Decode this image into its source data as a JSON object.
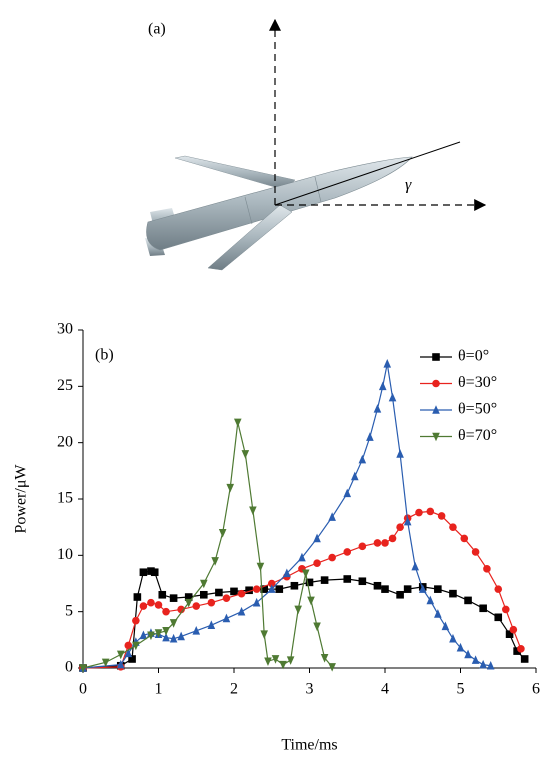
{
  "panel_a": {
    "label": "(a)",
    "angle_label": "γ"
  },
  "chart_data": {
    "type": "line",
    "panel_label": "(b)",
    "x_label": "Time/ms",
    "y_label": "Power/μW",
    "xlim": [
      0,
      6
    ],
    "xticks": [
      0,
      1,
      2,
      3,
      4,
      5,
      6
    ],
    "ylim": [
      0,
      30
    ],
    "yticks": [
      0,
      5,
      10,
      15,
      20,
      25,
      30
    ],
    "grid": false,
    "legend": "upper right",
    "series": [
      {
        "name": "θ=0°",
        "color": "#000000",
        "marker": "square",
        "x": [
          0,
          0.5,
          0.65,
          0.72,
          0.8,
          0.9,
          0.95,
          1.05,
          1.2,
          1.4,
          1.6,
          1.8,
          2.0,
          2.2,
          2.4,
          2.6,
          2.8,
          3.0,
          3.2,
          3.5,
          3.7,
          3.9,
          4.0,
          4.2,
          4.3,
          4.5,
          4.7,
          4.9,
          5.1,
          5.3,
          5.5,
          5.65,
          5.75,
          5.85
        ],
        "values": [
          0,
          0.2,
          0.8,
          6.3,
          8.5,
          8.6,
          8.5,
          6.5,
          6.2,
          6.3,
          6.5,
          6.7,
          6.8,
          6.9,
          7.0,
          7.0,
          7.3,
          7.6,
          7.8,
          7.9,
          7.7,
          7.3,
          7.0,
          6.5,
          7.0,
          7.2,
          7.0,
          6.6,
          6.0,
          5.3,
          4.5,
          3.0,
          1.5,
          0.8
        ]
      },
      {
        "name": "θ=30°",
        "color": "#e8231e",
        "marker": "circle",
        "x": [
          0,
          0.5,
          0.6,
          0.7,
          0.8,
          0.9,
          1.0,
          1.1,
          1.3,
          1.5,
          1.7,
          1.9,
          2.1,
          2.3,
          2.5,
          2.7,
          2.9,
          3.1,
          3.3,
          3.5,
          3.7,
          3.9,
          4.0,
          4.1,
          4.2,
          4.3,
          4.45,
          4.6,
          4.75,
          4.9,
          5.05,
          5.2,
          5.35,
          5.5,
          5.6,
          5.7,
          5.8
        ],
        "values": [
          0,
          0.1,
          2,
          4.2,
          5.5,
          5.8,
          5.6,
          5.0,
          5.2,
          5.5,
          5.8,
          6.2,
          6.6,
          7.0,
          7.5,
          8.1,
          8.8,
          9.3,
          9.8,
          10.3,
          10.8,
          11.1,
          11.1,
          11.5,
          12.5,
          13.3,
          13.8,
          13.9,
          13.5,
          12.5,
          11.5,
          10.3,
          8.8,
          7.0,
          5.2,
          3.4,
          1.7
        ]
      },
      {
        "name": "θ=50°",
        "color": "#2a5db0",
        "marker": "triangle-up",
        "x": [
          0,
          0.5,
          0.6,
          0.7,
          0.8,
          0.9,
          1.0,
          1.1,
          1.2,
          1.3,
          1.5,
          1.7,
          1.9,
          2.1,
          2.3,
          2.5,
          2.7,
          2.9,
          3.1,
          3.3,
          3.5,
          3.6,
          3.7,
          3.8,
          3.9,
          3.97,
          4.03,
          4.1,
          4.2,
          4.3,
          4.4,
          4.5,
          4.6,
          4.7,
          4.8,
          4.9,
          5.0,
          5.1,
          5.2,
          5.3,
          5.4
        ],
        "values": [
          0,
          0.3,
          1.3,
          2.3,
          2.9,
          3.1,
          3.0,
          2.7,
          2.6,
          2.8,
          3.3,
          3.8,
          4.4,
          5.0,
          5.8,
          7.0,
          8.4,
          9.8,
          11.5,
          13.4,
          15.5,
          17,
          18.5,
          20.5,
          23,
          25,
          27,
          24,
          19,
          13,
          9,
          7,
          6,
          4.8,
          3.7,
          2.6,
          1.8,
          1.2,
          0.7,
          0.3,
          0.2
        ]
      },
      {
        "name": "θ=70°",
        "color": "#4f7a33",
        "marker": "triangle-down",
        "x": [
          0,
          0.3,
          0.5,
          0.7,
          0.9,
          1.0,
          1.1,
          1.2,
          1.4,
          1.6,
          1.75,
          1.85,
          1.95,
          2.05,
          2.15,
          2.25,
          2.35,
          2.4,
          2.45,
          2.55,
          2.65,
          2.75,
          2.85,
          2.95,
          3.02,
          3.1,
          3.2,
          3.3
        ],
        "values": [
          0,
          0.5,
          1.2,
          2.0,
          2.9,
          3.1,
          3.3,
          4.0,
          5.8,
          7.5,
          9.5,
          12,
          16,
          21.8,
          19,
          14,
          9,
          3,
          0.6,
          0.8,
          0.3,
          0.7,
          5.2,
          8.4,
          6,
          3.7,
          0.9,
          0.1
        ]
      }
    ]
  }
}
